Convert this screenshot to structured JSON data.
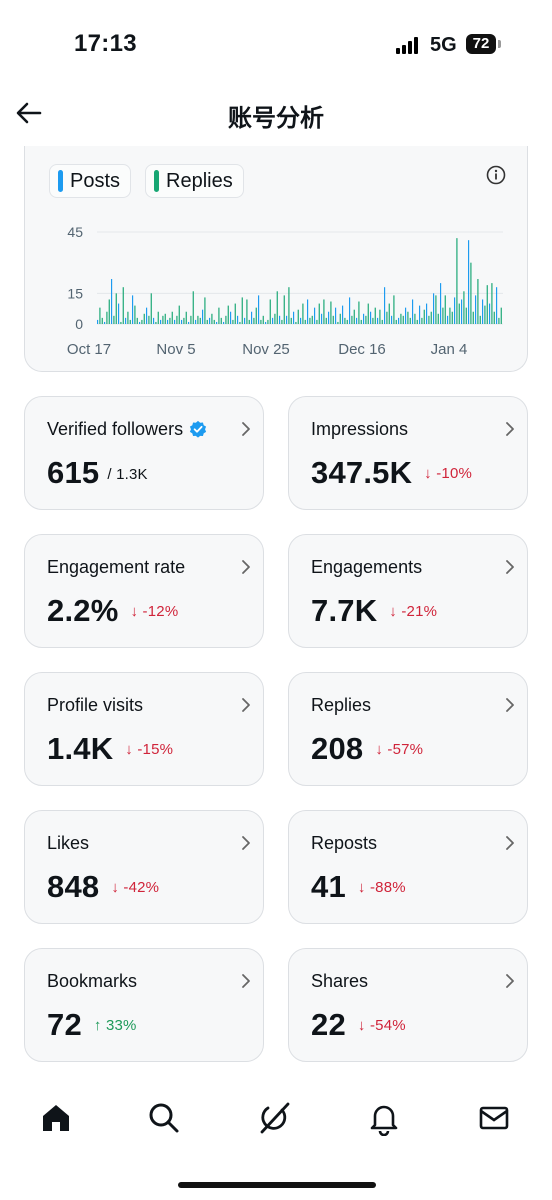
{
  "status_bar": {
    "time": "17:13",
    "network": "5G",
    "battery": "72"
  },
  "header": {
    "title": "账号分析"
  },
  "chart": {
    "legend": [
      {
        "label": "Posts",
        "color": "#1d9bf0"
      },
      {
        "label": "Replies",
        "color": "#17a673"
      }
    ]
  },
  "chart_data": {
    "type": "bar",
    "y_ticks": [
      "45",
      "15",
      "0"
    ],
    "x_ticks": [
      "Oct 17",
      "Nov 5",
      "Nov 25",
      "Dec 16",
      "Jan 4"
    ],
    "ylim": [
      0,
      45
    ],
    "series": [
      {
        "name": "Posts",
        "color": "#1d9bf0"
      },
      {
        "name": "Replies",
        "color": "#17a673"
      }
    ],
    "values": [
      2,
      8,
      3,
      1,
      6,
      12,
      22,
      4,
      15,
      10,
      1,
      18,
      3,
      6,
      2,
      14,
      9,
      3,
      1,
      2,
      5,
      8,
      4,
      15,
      3,
      1,
      6,
      2,
      4,
      5,
      2,
      3,
      6,
      2,
      4,
      9,
      2,
      3,
      6,
      1,
      4,
      16,
      2,
      4,
      3,
      7,
      13,
      2,
      3,
      5,
      2,
      1,
      8,
      3,
      1,
      4,
      9,
      6,
      2,
      10,
      4,
      1,
      13,
      3,
      12,
      2,
      6,
      3,
      8,
      14,
      2,
      4,
      1,
      2,
      12,
      3,
      5,
      16,
      4,
      2,
      14,
      4,
      18,
      3,
      6,
      1,
      7,
      3,
      10,
      2,
      12,
      3,
      4,
      8,
      2,
      10,
      5,
      12,
      3,
      6,
      11,
      4,
      8,
      1,
      5,
      9,
      3,
      2,
      13,
      4,
      7,
      3,
      11,
      2,
      5,
      4,
      10,
      6,
      3,
      8,
      3,
      7,
      2,
      18,
      6,
      10,
      4,
      14,
      2,
      3,
      5,
      4,
      8,
      6,
      3,
      12,
      5,
      2,
      9,
      3,
      7,
      10,
      4,
      6,
      15,
      14,
      5,
      20,
      8,
      14,
      4,
      8,
      6,
      13,
      42,
      10,
      12,
      16,
      8,
      41,
      30,
      6,
      14,
      22,
      4,
      12,
      9,
      19,
      10,
      20,
      6,
      18,
      3,
      8
    ]
  },
  "stats": [
    {
      "label": "Verified followers",
      "value": "615",
      "sub": "/ 1.3K",
      "delta": "",
      "delta_dir": ""
    },
    {
      "label": "Impressions",
      "value": "347.5K",
      "sub": "",
      "delta": "↓ -10%",
      "delta_dir": "down"
    },
    {
      "label": "Engagement rate",
      "value": "2.2%",
      "sub": "",
      "delta": "↓ -12%",
      "delta_dir": "down"
    },
    {
      "label": "Engagements",
      "value": "7.7K",
      "sub": "",
      "delta": "↓ -21%",
      "delta_dir": "down"
    },
    {
      "label": "Profile visits",
      "value": "1.4K",
      "sub": "",
      "delta": "↓ -15%",
      "delta_dir": "down"
    },
    {
      "label": "Replies",
      "value": "208",
      "sub": "",
      "delta": "↓ -57%",
      "delta_dir": "down"
    },
    {
      "label": "Likes",
      "value": "848",
      "sub": "",
      "delta": "↓ -42%",
      "delta_dir": "down"
    },
    {
      "label": "Reposts",
      "value": "41",
      "sub": "",
      "delta": "↓ -88%",
      "delta_dir": "down"
    },
    {
      "label": "Bookmarks",
      "value": "72",
      "sub": "",
      "delta": "↑ 33%",
      "delta_dir": "up"
    },
    {
      "label": "Shares",
      "value": "22",
      "sub": "",
      "delta": "↓ -54%",
      "delta_dir": "down"
    }
  ],
  "tabs": [
    {
      "name": "home-icon"
    },
    {
      "name": "search-icon"
    },
    {
      "name": "grok-icon"
    },
    {
      "name": "bell-icon"
    },
    {
      "name": "mail-icon"
    }
  ]
}
